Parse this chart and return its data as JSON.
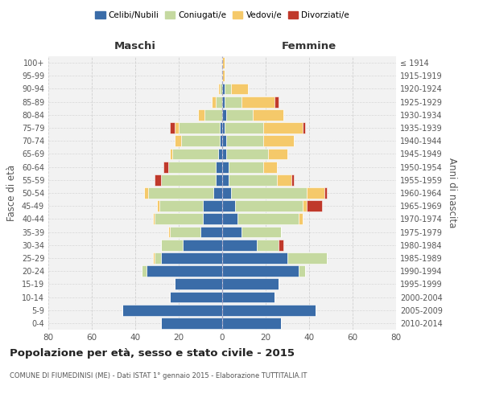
{
  "age_groups": [
    "0-4",
    "5-9",
    "10-14",
    "15-19",
    "20-24",
    "25-29",
    "30-34",
    "35-39",
    "40-44",
    "45-49",
    "50-54",
    "55-59",
    "60-64",
    "65-69",
    "70-74",
    "75-79",
    "80-84",
    "85-89",
    "90-94",
    "95-99",
    "100+"
  ],
  "birth_years": [
    "2010-2014",
    "2005-2009",
    "2000-2004",
    "1995-1999",
    "1990-1994",
    "1985-1989",
    "1980-1984",
    "1975-1979",
    "1970-1974",
    "1965-1969",
    "1960-1964",
    "1955-1959",
    "1950-1954",
    "1945-1949",
    "1940-1944",
    "1935-1939",
    "1930-1934",
    "1925-1929",
    "1920-1924",
    "1915-1919",
    "≤ 1914"
  ],
  "male_celibi": [
    28,
    46,
    24,
    22,
    35,
    28,
    18,
    10,
    9,
    9,
    4,
    3,
    3,
    2,
    1,
    1,
    0,
    0,
    0,
    0,
    0
  ],
  "male_coniugati": [
    0,
    0,
    0,
    0,
    2,
    3,
    10,
    14,
    22,
    20,
    30,
    25,
    22,
    21,
    18,
    19,
    8,
    3,
    1,
    0,
    0
  ],
  "male_vedovi": [
    0,
    0,
    0,
    0,
    0,
    1,
    0,
    1,
    1,
    1,
    2,
    0,
    0,
    1,
    3,
    2,
    3,
    2,
    1,
    0,
    0
  ],
  "male_divorziati": [
    0,
    0,
    0,
    0,
    0,
    0,
    0,
    0,
    0,
    0,
    0,
    3,
    2,
    0,
    0,
    2,
    0,
    0,
    0,
    0,
    0
  ],
  "female_celibi": [
    27,
    43,
    24,
    26,
    35,
    30,
    16,
    9,
    7,
    6,
    4,
    3,
    3,
    2,
    2,
    1,
    2,
    1,
    1,
    0,
    0
  ],
  "female_coniugati": [
    0,
    0,
    0,
    0,
    3,
    18,
    10,
    18,
    28,
    31,
    35,
    22,
    16,
    19,
    17,
    18,
    12,
    8,
    3,
    0,
    0
  ],
  "female_vedovi": [
    0,
    0,
    0,
    0,
    0,
    0,
    0,
    0,
    2,
    2,
    8,
    7,
    6,
    9,
    14,
    18,
    14,
    15,
    8,
    1,
    1
  ],
  "female_divorziati": [
    0,
    0,
    0,
    0,
    0,
    0,
    2,
    0,
    0,
    7,
    1,
    1,
    0,
    0,
    0,
    1,
    0,
    2,
    0,
    0,
    0
  ],
  "color_celibi": "#3a6ca8",
  "color_coniugati": "#c5d9a0",
  "color_vedovi": "#f5c96a",
  "color_divorziati": "#c0392b",
  "title": "Popolazione per età, sesso e stato civile - 2015",
  "subtitle": "COMUNE DI FIUMEDINISI (ME) - Dati ISTAT 1° gennaio 2015 - Elaborazione TUTTITALIA.IT",
  "xlabel_left": "Maschi",
  "xlabel_right": "Femmine",
  "ylabel_left": "Fasce di età",
  "ylabel_right": "Anni di nascita",
  "xlim": 80,
  "background_color": "#ffffff",
  "grid_color": "#cccccc"
}
